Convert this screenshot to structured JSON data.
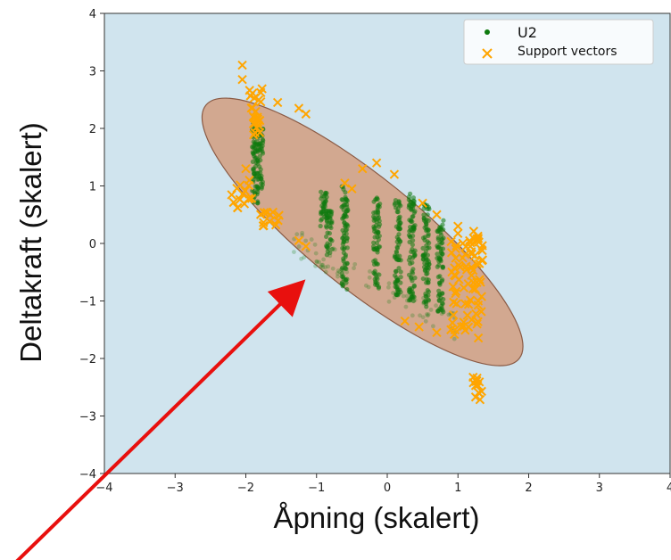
{
  "chart_data": {
    "type": "scatter",
    "title": "",
    "xlabel": "Åpning (skalert)",
    "ylabel": "Deltakraft (skalert)",
    "xlim": [
      -4,
      4
    ],
    "ylim": [
      -4,
      4
    ],
    "xticks": [
      -4,
      -3,
      -2,
      -1,
      0,
      1,
      2,
      3,
      4
    ],
    "yticks": [
      -4,
      -3,
      -2,
      -1,
      0,
      1,
      2,
      3,
      4
    ],
    "x_tick_labels": [
      "−4",
      "−3",
      "−2",
      "−1",
      "0",
      "1",
      "2",
      "3",
      "4"
    ],
    "y_tick_labels": [
      "−4",
      "−3",
      "−2",
      "−1",
      "0",
      "1",
      "2",
      "3",
      "4"
    ],
    "grid": false,
    "legend_position": "top-right",
    "background_color": "#d0e4ee",
    "decision_region": {
      "shape": "ellipse",
      "color": "#d2a890",
      "center": [
        -0.35,
        0.2
      ],
      "semi_axis_long": 2.85,
      "semi_axis_short": 0.78,
      "angle_deg": -39
    },
    "series": [
      {
        "name": "U2",
        "marker": "circle",
        "color": "#0e7a0e",
        "clusters": [
          {
            "x": -1.87,
            "y_range": [
              0.7,
              2.1
            ]
          },
          {
            "x": -1.8,
            "y_range": [
              0.9,
              2.0
            ]
          },
          {
            "x": -0.9,
            "y_range": [
              0.3,
              0.9
            ]
          },
          {
            "x": -0.82,
            "y_range": [
              -0.2,
              0.6
            ]
          },
          {
            "x": -0.6,
            "y_range": [
              -0.8,
              1.0
            ]
          },
          {
            "x": -0.15,
            "y_range": [
              -0.8,
              0.8
            ]
          },
          {
            "x": 0.15,
            "y_range": [
              -0.9,
              0.8
            ]
          },
          {
            "x": 0.35,
            "y_range": [
              -1.0,
              0.9
            ]
          },
          {
            "x": 0.55,
            "y_range": [
              -1.1,
              0.7
            ]
          },
          {
            "x": 0.75,
            "y_range": [
              -1.2,
              0.4
            ]
          }
        ]
      },
      {
        "name": "Support vectors",
        "marker": "x",
        "color": "#ffa500",
        "points": [
          [
            -2.05,
            3.1
          ],
          [
            -2.05,
            2.85
          ],
          [
            -1.55,
            2.45
          ],
          [
            -1.25,
            2.35
          ],
          [
            -1.15,
            2.25
          ],
          [
            -2.0,
            1.3
          ],
          [
            -1.95,
            1.1
          ],
          [
            -1.15,
            -0.05
          ],
          [
            -1.25,
            0.05
          ],
          [
            -0.6,
            1.05
          ],
          [
            -0.5,
            0.95
          ],
          [
            -0.35,
            1.3
          ],
          [
            -0.15,
            1.4
          ],
          [
            0.1,
            1.2
          ],
          [
            0.5,
            0.7
          ],
          [
            0.7,
            0.5
          ],
          [
            1.0,
            0.3
          ],
          [
            0.25,
            -1.35
          ],
          [
            0.45,
            -1.45
          ],
          [
            0.7,
            -1.55
          ],
          [
            0.9,
            -1.5
          ],
          [
            1.05,
            -1.45
          ]
        ],
        "clusters": [
          {
            "x_range": [
              -1.95,
              -1.75
            ],
            "y_range": [
              2.2,
              2.8
            ]
          },
          {
            "x_range": [
              -1.9,
              -1.8
            ],
            "y_range": [
              1.8,
              2.2
            ]
          },
          {
            "x_range": [
              -2.2,
              -1.9
            ],
            "y_range": [
              0.6,
              1.1
            ]
          },
          {
            "x_range": [
              -1.9,
              -1.5
            ],
            "y_range": [
              0.25,
              0.55
            ]
          },
          {
            "x_range": [
              0.9,
              1.35
            ],
            "y_range": [
              -1.65,
              0.25
            ]
          },
          {
            "x_range": [
              1.2,
              1.35
            ],
            "y_range": [
              -2.75,
              -2.3
            ]
          }
        ]
      }
    ],
    "annotations": [
      {
        "type": "arrow",
        "color": "#e8100e",
        "from": [
          -5.3,
          -5.6
        ],
        "to": [
          -1.3,
          -0.8
        ]
      }
    ]
  }
}
